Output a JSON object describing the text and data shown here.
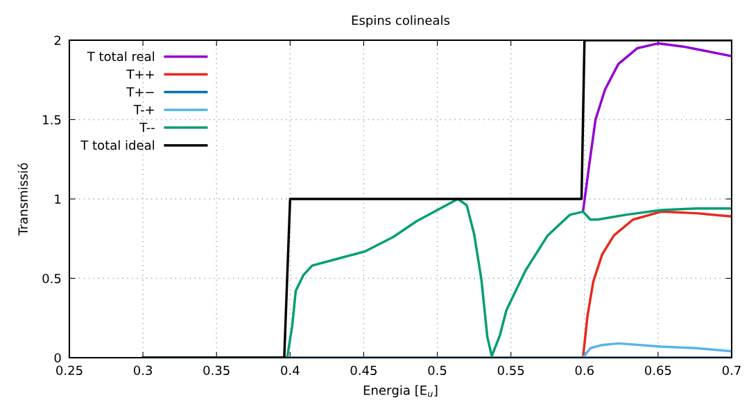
{
  "chart_data": {
    "type": "line",
    "title": "Espins colineals",
    "xlabel": "Energia [E$_{u}$]",
    "ylabel": "Transmissió",
    "xlim": [
      0.25,
      0.7
    ],
    "xticks": [
      0.25,
      0.3,
      0.35,
      0.4,
      0.45,
      0.5,
      0.55,
      0.6,
      0.65,
      0.7
    ],
    "ylim": [
      0,
      2
    ],
    "yticks": [
      0,
      0.5,
      1,
      1.5,
      2
    ],
    "grid": true,
    "legend": "top left",
    "line_style": "solid",
    "marker": "none",
    "series": [
      {
        "name": "T total real",
        "color": "#9400d3",
        "x": [
          0.599,
          0.603,
          0.6075,
          0.614,
          0.623,
          0.636,
          0.65,
          0.667,
          0.7
        ],
        "values": [
          0.92,
          1.2,
          1.5,
          1.69,
          1.85,
          1.95,
          1.98,
          1.96,
          1.9
        ]
      },
      {
        "name": "T++",
        "color": "#e8291c",
        "x": [
          0.599,
          0.602,
          0.606,
          0.612,
          0.62,
          0.633,
          0.652,
          0.676,
          0.7
        ],
        "values": [
          0,
          0.26,
          0.48,
          0.65,
          0.77,
          0.87,
          0.92,
          0.91,
          0.89
        ]
      },
      {
        "name": "T+−",
        "color": "#0072b2",
        "x": [
          0.3,
          0.7
        ],
        "values": [
          0,
          0
        ]
      },
      {
        "name": "T-+",
        "color": "#56b4e9",
        "x": [
          0.599,
          0.604,
          0.612,
          0.623,
          0.652,
          0.676,
          0.7
        ],
        "values": [
          0,
          0.06,
          0.08,
          0.09,
          0.07,
          0.06,
          0.04
        ]
      },
      {
        "name": "T--",
        "color": "#009e73",
        "x": [
          0.3,
          0.398,
          0.4014,
          0.4038,
          0.409,
          0.415,
          0.431,
          0.451,
          0.47,
          0.486,
          0.502,
          0.514,
          0.52,
          0.525,
          0.53,
          0.534,
          0.537,
          0.5425,
          0.547,
          0.56,
          0.575,
          0.59,
          0.599,
          0.604,
          0.609,
          0.628,
          0.652,
          0.676,
          0.7
        ],
        "values": [
          0,
          0,
          0.2,
          0.42,
          0.52,
          0.58,
          0.62,
          0.67,
          0.76,
          0.86,
          0.94,
          1.0,
          0.96,
          0.78,
          0.49,
          0.13,
          0.01,
          0.14,
          0.3,
          0.55,
          0.77,
          0.9,
          0.92,
          0.87,
          0.87,
          0.9,
          0.93,
          0.94,
          0.94
        ]
      },
      {
        "name": "T total ideal",
        "color": "#000000",
        "x": [
          0.3,
          0.396,
          0.4,
          0.598,
          0.6,
          0.7
        ],
        "values": [
          0,
          0,
          1,
          1,
          2,
          2
        ]
      }
    ]
  }
}
